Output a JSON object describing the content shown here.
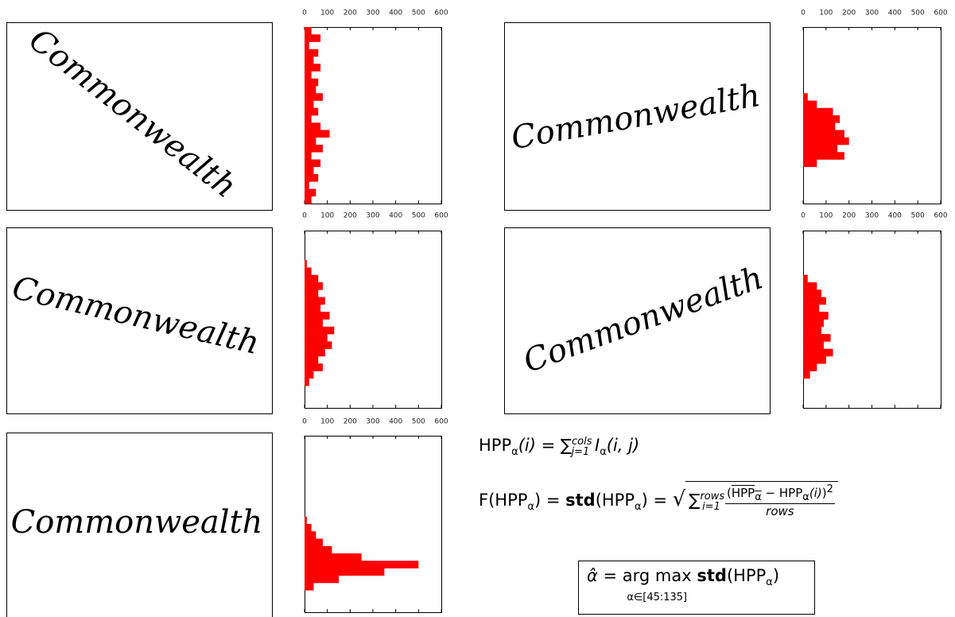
{
  "chart_data": [
    {
      "type": "bar",
      "image_word": "Commonwealth",
      "color": "#ff0000",
      "xlim": [
        0,
        600
      ],
      "xticks": [
        0,
        100,
        200,
        300,
        400,
        500,
        600
      ],
      "values": [
        30,
        70,
        20,
        60,
        40,
        70,
        30,
        60,
        50,
        80,
        40,
        60,
        30,
        70,
        110,
        50,
        80,
        30,
        70,
        40,
        60,
        20,
        50,
        30
      ]
    },
    {
      "type": "bar",
      "image_word": "Commonwealth",
      "color": "#ff0000",
      "xlim": [
        0,
        600
      ],
      "xticks": [
        0,
        100,
        200,
        300,
        400,
        500,
        600
      ],
      "values": [
        0,
        0,
        0,
        0,
        10,
        30,
        60,
        80,
        60,
        90,
        70,
        110,
        80,
        130,
        100,
        120,
        90,
        60,
        80,
        40,
        20,
        0,
        0,
        0
      ]
    },
    {
      "type": "bar",
      "image_word": "Commonwealth",
      "color": "#ff0000",
      "xlim": [
        0,
        600
      ],
      "xticks": [
        0,
        100,
        200,
        300,
        400,
        500,
        600
      ],
      "values": [
        0,
        0,
        0,
        0,
        0,
        0,
        0,
        0,
        0,
        0,
        0,
        10,
        30,
        50,
        80,
        120,
        250,
        500,
        350,
        150,
        40,
        0,
        0,
        0
      ]
    },
    {
      "type": "bar",
      "image_word": "Commonwealth",
      "color": "#ff0000",
      "xlim": [
        0,
        600
      ],
      "xticks": [
        0,
        100,
        200,
        300,
        400,
        500,
        600
      ],
      "values": [
        0,
        0,
        0,
        0,
        0,
        0,
        0,
        0,
        0,
        20,
        60,
        130,
        160,
        140,
        180,
        200,
        150,
        180,
        60,
        0,
        0,
        0,
        0,
        0
      ]
    },
    {
      "type": "bar",
      "image_word": "Commonwealth",
      "color": "#ff0000",
      "xlim": [
        0,
        600
      ],
      "xticks": [
        0,
        100,
        200,
        300,
        400,
        500,
        600
      ],
      "values": [
        0,
        0,
        0,
        0,
        0,
        0,
        20,
        60,
        80,
        100,
        70,
        110,
        90,
        80,
        120,
        90,
        130,
        100,
        60,
        30,
        0,
        0,
        0,
        0
      ]
    }
  ],
  "formulas": {
    "f1": [
      "HPP",
      "α",
      "(i) = ",
      "∑",
      "cols",
      "j=1",
      "I",
      "α",
      "(i, j)"
    ],
    "f2": [
      "F(HPP",
      "α",
      ") = ",
      "std",
      "(HPP",
      "α",
      ") = ",
      "∑",
      "rows",
      "i=1",
      "HPP",
      "α",
      " − HPP",
      "α",
      "(i)",
      "2",
      "rows"
    ],
    "f3": [
      "α̂ = ",
      "arg max",
      "α∈[45:135]",
      "std",
      "(HPP",
      "α",
      ")"
    ]
  }
}
